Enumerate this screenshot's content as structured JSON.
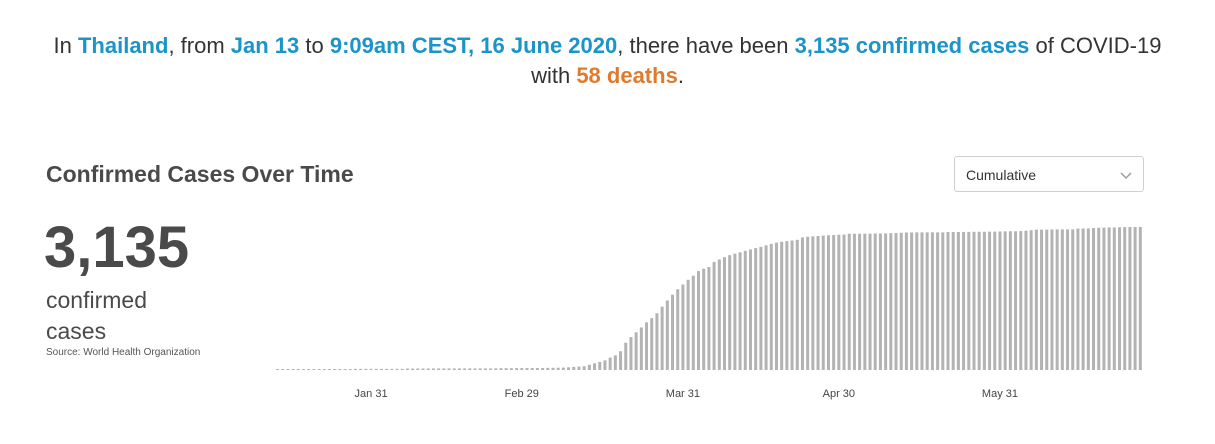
{
  "summary": {
    "prefix": "In ",
    "country": "Thailand",
    "from_text": ", from ",
    "start_date": "Jan 13",
    "to_text": " to ",
    "end_date": "9:09am CEST, 16 June 2020",
    "been_text": ", there have been ",
    "cases_text": "3,135 confirmed cases",
    "of_text": " of COVID-19 with ",
    "deaths_text": "58 deaths",
    "period": "."
  },
  "section": {
    "title": "Confirmed Cases Over Time",
    "dropdown_value": "Cumulative"
  },
  "stat": {
    "value": "3,135",
    "label": "confirmed cases",
    "source": "Source: World Health Organization"
  },
  "colors": {
    "highlight": "#1a94c9",
    "deaths": "#e07a2c",
    "bars": "#b3b3b3"
  },
  "chart_data": {
    "type": "bar",
    "title": "Confirmed Cases Over Time",
    "xlabel": "",
    "ylabel": "",
    "x_range": [
      "2020-01-13",
      "2020-06-15"
    ],
    "tick_labels": [
      "Jan 31",
      "Feb 29",
      "Mar 31",
      "Apr 30",
      "May 31"
    ],
    "ylim": [
      0,
      3135
    ],
    "grid": false,
    "series": [
      {
        "values": [
          1,
          1,
          1,
          1,
          1,
          2,
          4,
          4,
          5,
          8,
          14,
          14,
          19,
          19,
          19,
          25,
          25,
          25,
          25,
          25,
          25,
          25,
          25,
          25,
          25,
          32,
          32,
          33,
          33,
          33,
          34,
          35,
          35,
          35,
          35,
          35,
          35,
          35,
          35,
          35,
          35,
          35,
          37,
          40,
          40,
          40,
          41,
          42,
          42,
          43,
          43,
          43,
          47,
          48,
          50,
          53,
          59,
          70,
          75,
          82,
          114,
          147,
          177,
          212,
          272,
          322,
          411,
          599,
          721,
          827,
          934,
          1045,
          1136,
          1245,
          1388,
          1524,
          1651,
          1771,
          1875,
          1978,
          2067,
          2169,
          2220,
          2258,
          2369,
          2423,
          2473,
          2518,
          2551,
          2579,
          2613,
          2643,
          2672,
          2700,
          2733,
          2765,
          2792,
          2811,
          2826,
          2839,
          2854,
          2907,
          2922,
          2931,
          2938,
          2947,
          2954,
          2960,
          2966,
          2969,
          2987,
          2987,
          2988,
          2989,
          2989,
          2992,
          2992,
          2996,
          3000,
          3004,
          3009,
          3015,
          3015,
          3017,
          3017,
          3018,
          3018,
          3017,
          3018,
          3025,
          3025,
          3025,
          3027,
          3028,
          3030,
          3031,
          3031,
          3033,
          3034,
          3037,
          3040,
          3042,
          3042,
          3045,
          3054,
          3065,
          3076,
          3077,
          3077,
          3081,
          3082,
          3083,
          3083,
          3084,
          3101,
          3102,
          3104,
          3112,
          3119,
          3121,
          3125,
          3125,
          3129,
          3134,
          3135,
          3135,
          3135
        ]
      }
    ]
  }
}
